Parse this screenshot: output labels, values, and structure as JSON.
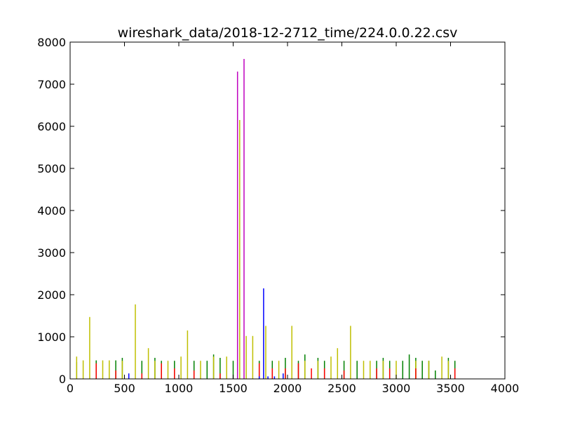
{
  "chart_data": {
    "type": "bar",
    "title": "wireshark_data/2018-12-2712_time/224.0.0.22.csv",
    "xlabel": "",
    "ylabel": "",
    "xlim": [
      0,
      4000
    ],
    "ylim": [
      0,
      8000
    ],
    "x_ticks": [
      0,
      500,
      1000,
      1500,
      2000,
      2500,
      3000,
      3500,
      4000
    ],
    "y_ticks": [
      0,
      1000,
      2000,
      3000,
      4000,
      5000,
      6000,
      7000,
      8000
    ],
    "x_tick_labels": [
      "0",
      "500",
      "1000",
      "1500",
      "2000",
      "2500",
      "3000",
      "3500",
      "4000"
    ],
    "y_tick_labels": [
      "0",
      "1000",
      "2000",
      "3000",
      "4000",
      "5000",
      "6000",
      "7000",
      "8000"
    ],
    "grid": false,
    "legend": "none",
    "colors": {
      "green": "#008000",
      "yellow": "#bfbf00",
      "red": "#ff0000",
      "blue": "#0000ff",
      "magenta": "#bf00bf"
    },
    "series": [
      {
        "color_key": "green",
        "x": [
          60,
          240,
          420,
          480,
          660,
          780,
          840,
          960,
          1140,
          1260,
          1320,
          1380,
          1500,
          1740,
          1860,
          1980,
          2100,
          2160,
          2280,
          2340,
          2520,
          2640,
          2820,
          2880,
          2940,
          3060,
          3120,
          3180,
          3240,
          3300,
          3360,
          3480,
          3540
        ],
        "values": [
          400,
          440,
          440,
          500,
          430,
          500,
          430,
          430,
          430,
          430,
          580,
          500,
          430,
          430,
          430,
          500,
          430,
          580,
          500,
          430,
          430,
          430,
          430,
          500,
          430,
          430,
          580,
          500,
          430,
          430,
          200,
          500,
          430
        ]
      },
      {
        "color_key": "yellow",
        "x": [
          60,
          120,
          180,
          300,
          360,
          480,
          600,
          720,
          780,
          900,
          1020,
          1080,
          1200,
          1320,
          1440,
          1560,
          1620,
          1680,
          1800,
          1920,
          2040,
          2160,
          2280,
          2400,
          2460,
          2580,
          2700,
          2760,
          2880,
          3000,
          3180,
          3300,
          3420,
          3480
        ],
        "values": [
          530,
          440,
          1470,
          440,
          440,
          430,
          1770,
          730,
          430,
          430,
          530,
          1150,
          430,
          530,
          530,
          6150,
          1020,
          1020,
          1260,
          430,
          1260,
          430,
          430,
          530,
          730,
          1260,
          430,
          430,
          430,
          430,
          430,
          430,
          530,
          430
        ]
      },
      {
        "color_key": "red",
        "x": [
          240,
          420,
          660,
          840,
          960,
          1140,
          1380,
          1740,
          1860,
          1980,
          2100,
          2220,
          2340,
          2520,
          2820,
          2940,
          3180,
          3540
        ],
        "values": [
          370,
          200,
          130,
          370,
          250,
          200,
          130,
          370,
          250,
          250,
          370,
          250,
          250,
          200,
          250,
          250,
          250,
          250
        ]
      },
      {
        "color_key": "blue",
        "x": [
          540,
          1740,
          1780,
          1820,
          1880,
          1960
        ],
        "values": [
          130,
          60,
          2150,
          60,
          60,
          130
        ]
      },
      {
        "color_key": "magenta",
        "x": [
          1540,
          1600
        ],
        "values": [
          7300,
          7600
        ]
      }
    ]
  }
}
